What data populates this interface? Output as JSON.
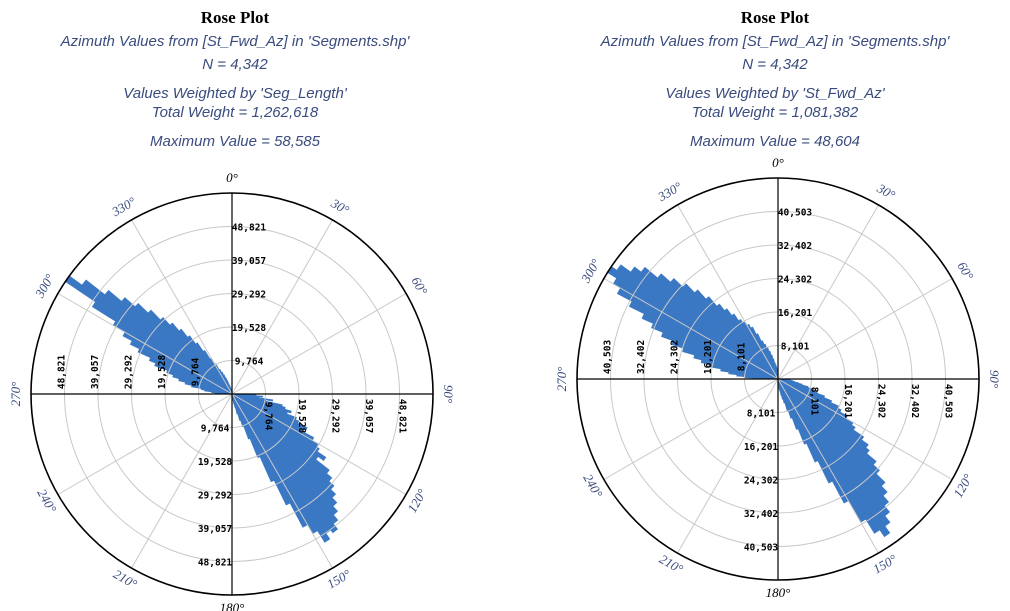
{
  "colors": {
    "petal": "#3b78c4",
    "text": "#3a4b7e",
    "grid": "#c8c8c8",
    "axis": "#000000"
  },
  "chart_data": [
    {
      "type": "rose",
      "title": "Rose Plot",
      "subtitle": "Azimuth Values from [St_Fwd_Az] in 'Segments.shp'",
      "n_label": "N = 4,342",
      "weight_label": "Values Weighted by 'Seg_Length'",
      "total_label": "Total Weight = 1,262,618",
      "max_label": "Maximum Value = 58,585",
      "max_value": 58585,
      "axis_max": 58585,
      "ring_values": [
        9764,
        19528,
        29292,
        39057,
        48821
      ],
      "ring_labels": [
        "9,764",
        "19,528",
        "29,292",
        "39,057",
        "48,821"
      ],
      "angle_labels": [
        "0°",
        "30°",
        "60°",
        "90°",
        "120°",
        "150°",
        "180°",
        "210°",
        "240°",
        "270°",
        "300°",
        "330°"
      ],
      "bin_width_deg": 2,
      "petals": [
        {
          "from": 90,
          "to": 92,
          "value": 4000
        },
        {
          "from": 92,
          "to": 94,
          "value": 7000
        },
        {
          "from": 94,
          "to": 96,
          "value": 9000
        },
        {
          "from": 96,
          "to": 98,
          "value": 8000
        },
        {
          "from": 98,
          "to": 100,
          "value": 12000
        },
        {
          "from": 100,
          "to": 102,
          "value": 10000
        },
        {
          "from": 102,
          "to": 104,
          "value": 15000
        },
        {
          "from": 104,
          "to": 106,
          "value": 16000
        },
        {
          "from": 106,
          "to": 108,
          "value": 18000
        },
        {
          "from": 108,
          "to": 110,
          "value": 17000
        },
        {
          "from": 110,
          "to": 112,
          "value": 20000
        },
        {
          "from": 112,
          "to": 114,
          "value": 21000
        },
        {
          "from": 114,
          "to": 116,
          "value": 24000
        },
        {
          "from": 116,
          "to": 118,
          "value": 23000
        },
        {
          "from": 118,
          "to": 120,
          "value": 27000
        },
        {
          "from": 120,
          "to": 122,
          "value": 29000
        },
        {
          "from": 122,
          "to": 124,
          "value": 30000
        },
        {
          "from": 124,
          "to": 126,
          "value": 33000
        },
        {
          "from": 126,
          "to": 128,
          "value": 31000
        },
        {
          "from": 128,
          "to": 130,
          "value": 36000
        },
        {
          "from": 130,
          "to": 132,
          "value": 38000
        },
        {
          "from": 132,
          "to": 134,
          "value": 40000
        },
        {
          "from": 134,
          "to": 136,
          "value": 42000
        },
        {
          "from": 136,
          "to": 138,
          "value": 44000
        },
        {
          "from": 138,
          "to": 140,
          "value": 46000
        },
        {
          "from": 140,
          "to": 142,
          "value": 48000
        },
        {
          "from": 142,
          "to": 144,
          "value": 50000
        },
        {
          "from": 144,
          "to": 146,
          "value": 49000
        },
        {
          "from": 146,
          "to": 148,
          "value": 51000
        },
        {
          "from": 148,
          "to": 150,
          "value": 47000
        },
        {
          "from": 150,
          "to": 152,
          "value": 44000
        },
        {
          "from": 152,
          "to": 154,
          "value": 36000
        },
        {
          "from": 154,
          "to": 156,
          "value": 28000
        },
        {
          "from": 156,
          "to": 158,
          "value": 20000
        },
        {
          "from": 158,
          "to": 160,
          "value": 14000
        },
        {
          "from": 160,
          "to": 162,
          "value": 10000
        },
        {
          "from": 162,
          "to": 164,
          "value": 8000
        },
        {
          "from": 164,
          "to": 166,
          "value": 6000
        },
        {
          "from": 166,
          "to": 168,
          "value": 4000
        },
        {
          "from": 168,
          "to": 170,
          "value": 3000
        },
        {
          "from": 170,
          "to": 172,
          "value": 2000
        },
        {
          "from": 172,
          "to": 174,
          "value": 1500
        },
        {
          "from": 174,
          "to": 176,
          "value": 1000
        },
        {
          "from": 176,
          "to": 178,
          "value": 800
        },
        {
          "from": 178,
          "to": 180,
          "value": 500
        },
        {
          "from": 270,
          "to": 272,
          "value": 3000
        },
        {
          "from": 272,
          "to": 274,
          "value": 5000
        },
        {
          "from": 274,
          "to": 276,
          "value": 6000
        },
        {
          "from": 276,
          "to": 278,
          "value": 8000
        },
        {
          "from": 278,
          "to": 280,
          "value": 9000
        },
        {
          "from": 280,
          "to": 282,
          "value": 12000
        },
        {
          "from": 282,
          "to": 284,
          "value": 14000
        },
        {
          "from": 284,
          "to": 286,
          "value": 16000
        },
        {
          "from": 286,
          "to": 288,
          "value": 18000
        },
        {
          "from": 288,
          "to": 290,
          "value": 20000
        },
        {
          "from": 290,
          "to": 292,
          "value": 24000
        },
        {
          "from": 292,
          "to": 294,
          "value": 26000
        },
        {
          "from": 294,
          "to": 296,
          "value": 30000
        },
        {
          "from": 296,
          "to": 298,
          "value": 33000
        },
        {
          "from": 298,
          "to": 300,
          "value": 36000
        },
        {
          "from": 300,
          "to": 302,
          "value": 40000
        },
        {
          "from": 302,
          "to": 304,
          "value": 48000
        },
        {
          "from": 304,
          "to": 306,
          "value": 58585
        },
        {
          "from": 306,
          "to": 308,
          "value": 54000
        },
        {
          "from": 308,
          "to": 310,
          "value": 47000
        },
        {
          "from": 310,
          "to": 312,
          "value": 42000
        },
        {
          "from": 312,
          "to": 314,
          "value": 38000
        },
        {
          "from": 314,
          "to": 316,
          "value": 34000
        },
        {
          "from": 316,
          "to": 318,
          "value": 30000
        },
        {
          "from": 318,
          "to": 320,
          "value": 27000
        },
        {
          "from": 320,
          "to": 322,
          "value": 24000
        },
        {
          "from": 322,
          "to": 324,
          "value": 21000
        },
        {
          "from": 324,
          "to": 326,
          "value": 18000
        },
        {
          "from": 326,
          "to": 328,
          "value": 15000
        },
        {
          "from": 328,
          "to": 330,
          "value": 12000
        },
        {
          "from": 330,
          "to": 332,
          "value": 10000
        },
        {
          "from": 332,
          "to": 334,
          "value": 8000
        },
        {
          "from": 334,
          "to": 336,
          "value": 7000
        },
        {
          "from": 336,
          "to": 338,
          "value": 6000
        },
        {
          "from": 338,
          "to": 340,
          "value": 5000
        },
        {
          "from": 340,
          "to": 342,
          "value": 4000
        },
        {
          "from": 342,
          "to": 344,
          "value": 3000
        },
        {
          "from": 344,
          "to": 346,
          "value": 2500
        },
        {
          "from": 346,
          "to": 348,
          "value": 2000
        },
        {
          "from": 348,
          "to": 350,
          "value": 1500
        },
        {
          "from": 350,
          "to": 352,
          "value": 1200
        },
        {
          "from": 352,
          "to": 354,
          "value": 1000
        },
        {
          "from": 354,
          "to": 356,
          "value": 800
        },
        {
          "from": 356,
          "to": 358,
          "value": 600
        },
        {
          "from": 358,
          "to": 360,
          "value": 500
        }
      ]
    },
    {
      "type": "rose",
      "title": "Rose Plot",
      "subtitle": "Azimuth Values from [St_Fwd_Az] in 'Segments.shp'",
      "n_label": "N = 4,342",
      "weight_label": "Values Weighted by 'St_Fwd_Az'",
      "total_label": "Total Weight = 1,081,382",
      "max_label": "Maximum Value = 48,604",
      "max_value": 48604,
      "axis_max": 48604,
      "ring_values": [
        8101,
        16201,
        24302,
        32402,
        40503
      ],
      "ring_labels": [
        "8,101",
        "16,201",
        "24,302",
        "32,402",
        "40,503"
      ],
      "angle_labels": [
        "0°",
        "30°",
        "60°",
        "90°",
        "120°",
        "150°",
        "180°",
        "210°",
        "240°",
        "270°",
        "300°",
        "330°"
      ],
      "bin_width_deg": 2,
      "petals": [
        {
          "from": 90,
          "to": 92,
          "value": 1500
        },
        {
          "from": 92,
          "to": 94,
          "value": 2500
        },
        {
          "from": 94,
          "to": 96,
          "value": 3000
        },
        {
          "from": 96,
          "to": 98,
          "value": 3500
        },
        {
          "from": 98,
          "to": 100,
          "value": 4000
        },
        {
          "from": 100,
          "to": 102,
          "value": 5000
        },
        {
          "from": 102,
          "to": 104,
          "value": 6000
        },
        {
          "from": 104,
          "to": 106,
          "value": 7500
        },
        {
          "from": 106,
          "to": 108,
          "value": 9000
        },
        {
          "from": 108,
          "to": 110,
          "value": 10000
        },
        {
          "from": 110,
          "to": 112,
          "value": 12000
        },
        {
          "from": 112,
          "to": 114,
          "value": 14000
        },
        {
          "from": 114,
          "to": 116,
          "value": 16000
        },
        {
          "from": 116,
          "to": 118,
          "value": 17000
        },
        {
          "from": 118,
          "to": 120,
          "value": 19000
        },
        {
          "from": 120,
          "to": 122,
          "value": 21000
        },
        {
          "from": 122,
          "to": 124,
          "value": 22000
        },
        {
          "from": 124,
          "to": 126,
          "value": 25000
        },
        {
          "from": 126,
          "to": 128,
          "value": 27000
        },
        {
          "from": 128,
          "to": 130,
          "value": 28000
        },
        {
          "from": 130,
          "to": 132,
          "value": 31000
        },
        {
          "from": 132,
          "to": 134,
          "value": 33000
        },
        {
          "from": 134,
          "to": 136,
          "value": 36000
        },
        {
          "from": 136,
          "to": 138,
          "value": 38000
        },
        {
          "from": 138,
          "to": 140,
          "value": 40000
        },
        {
          "from": 140,
          "to": 142,
          "value": 42000
        },
        {
          "from": 142,
          "to": 144,
          "value": 44000
        },
        {
          "from": 144,
          "to": 146,
          "value": 46000
        },
        {
          "from": 146,
          "to": 148,
          "value": 44000
        },
        {
          "from": 148,
          "to": 150,
          "value": 40000
        },
        {
          "from": 150,
          "to": 152,
          "value": 34000
        },
        {
          "from": 152,
          "to": 154,
          "value": 28000
        },
        {
          "from": 154,
          "to": 156,
          "value": 22000
        },
        {
          "from": 156,
          "to": 158,
          "value": 17000
        },
        {
          "from": 158,
          "to": 160,
          "value": 13000
        },
        {
          "from": 160,
          "to": 162,
          "value": 10000
        },
        {
          "from": 162,
          "to": 164,
          "value": 8000
        },
        {
          "from": 164,
          "to": 166,
          "value": 6000
        },
        {
          "from": 166,
          "to": 168,
          "value": 5000
        },
        {
          "from": 168,
          "to": 170,
          "value": 4000
        },
        {
          "from": 170,
          "to": 172,
          "value": 3000
        },
        {
          "from": 172,
          "to": 174,
          "value": 2500
        },
        {
          "from": 174,
          "to": 176,
          "value": 2000
        },
        {
          "from": 176,
          "to": 178,
          "value": 1500
        },
        {
          "from": 178,
          "to": 180,
          "value": 1000
        },
        {
          "from": 270,
          "to": 272,
          "value": 5000
        },
        {
          "from": 272,
          "to": 274,
          "value": 8000
        },
        {
          "from": 274,
          "to": 276,
          "value": 10000
        },
        {
          "from": 276,
          "to": 278,
          "value": 12000
        },
        {
          "from": 278,
          "to": 280,
          "value": 14000
        },
        {
          "from": 280,
          "to": 282,
          "value": 17000
        },
        {
          "from": 282,
          "to": 284,
          "value": 19000
        },
        {
          "from": 284,
          "to": 286,
          "value": 21000
        },
        {
          "from": 286,
          "to": 288,
          "value": 24000
        },
        {
          "from": 288,
          "to": 290,
          "value": 27000
        },
        {
          "from": 290,
          "to": 292,
          "value": 30000
        },
        {
          "from": 292,
          "to": 294,
          "value": 33000
        },
        {
          "from": 294,
          "to": 296,
          "value": 36000
        },
        {
          "from": 296,
          "to": 298,
          "value": 40000
        },
        {
          "from": 298,
          "to": 300,
          "value": 44000
        },
        {
          "from": 300,
          "to": 302,
          "value": 46000
        },
        {
          "from": 302,
          "to": 304,
          "value": 48604
        },
        {
          "from": 304,
          "to": 306,
          "value": 47000
        },
        {
          "from": 306,
          "to": 308,
          "value": 44000
        },
        {
          "from": 308,
          "to": 310,
          "value": 42000
        },
        {
          "from": 310,
          "to": 312,
          "value": 38000
        },
        {
          "from": 312,
          "to": 314,
          "value": 35000
        },
        {
          "from": 314,
          "to": 316,
          "value": 32000
        },
        {
          "from": 316,
          "to": 318,
          "value": 29000
        },
        {
          "from": 318,
          "to": 320,
          "value": 26000
        },
        {
          "from": 320,
          "to": 322,
          "value": 23000
        },
        {
          "from": 322,
          "to": 324,
          "value": 21000
        },
        {
          "from": 324,
          "to": 326,
          "value": 19000
        },
        {
          "from": 326,
          "to": 328,
          "value": 17000
        },
        {
          "from": 328,
          "to": 330,
          "value": 16000
        },
        {
          "from": 330,
          "to": 332,
          "value": 15000
        },
        {
          "from": 332,
          "to": 334,
          "value": 14000
        },
        {
          "from": 334,
          "to": 336,
          "value": 12000
        },
        {
          "from": 336,
          "to": 338,
          "value": 10000
        },
        {
          "from": 338,
          "to": 340,
          "value": 9000
        },
        {
          "from": 340,
          "to": 342,
          "value": 8000
        },
        {
          "from": 342,
          "to": 344,
          "value": 7000
        },
        {
          "from": 344,
          "to": 346,
          "value": 6000
        },
        {
          "from": 346,
          "to": 348,
          "value": 5000
        },
        {
          "from": 348,
          "to": 350,
          "value": 4000
        },
        {
          "from": 350,
          "to": 352,
          "value": 3500
        },
        {
          "from": 352,
          "to": 354,
          "value": 3000
        },
        {
          "from": 354,
          "to": 356,
          "value": 2500
        },
        {
          "from": 356,
          "to": 358,
          "value": 2000
        },
        {
          "from": 358,
          "to": 360,
          "value": 1500
        }
      ]
    }
  ]
}
